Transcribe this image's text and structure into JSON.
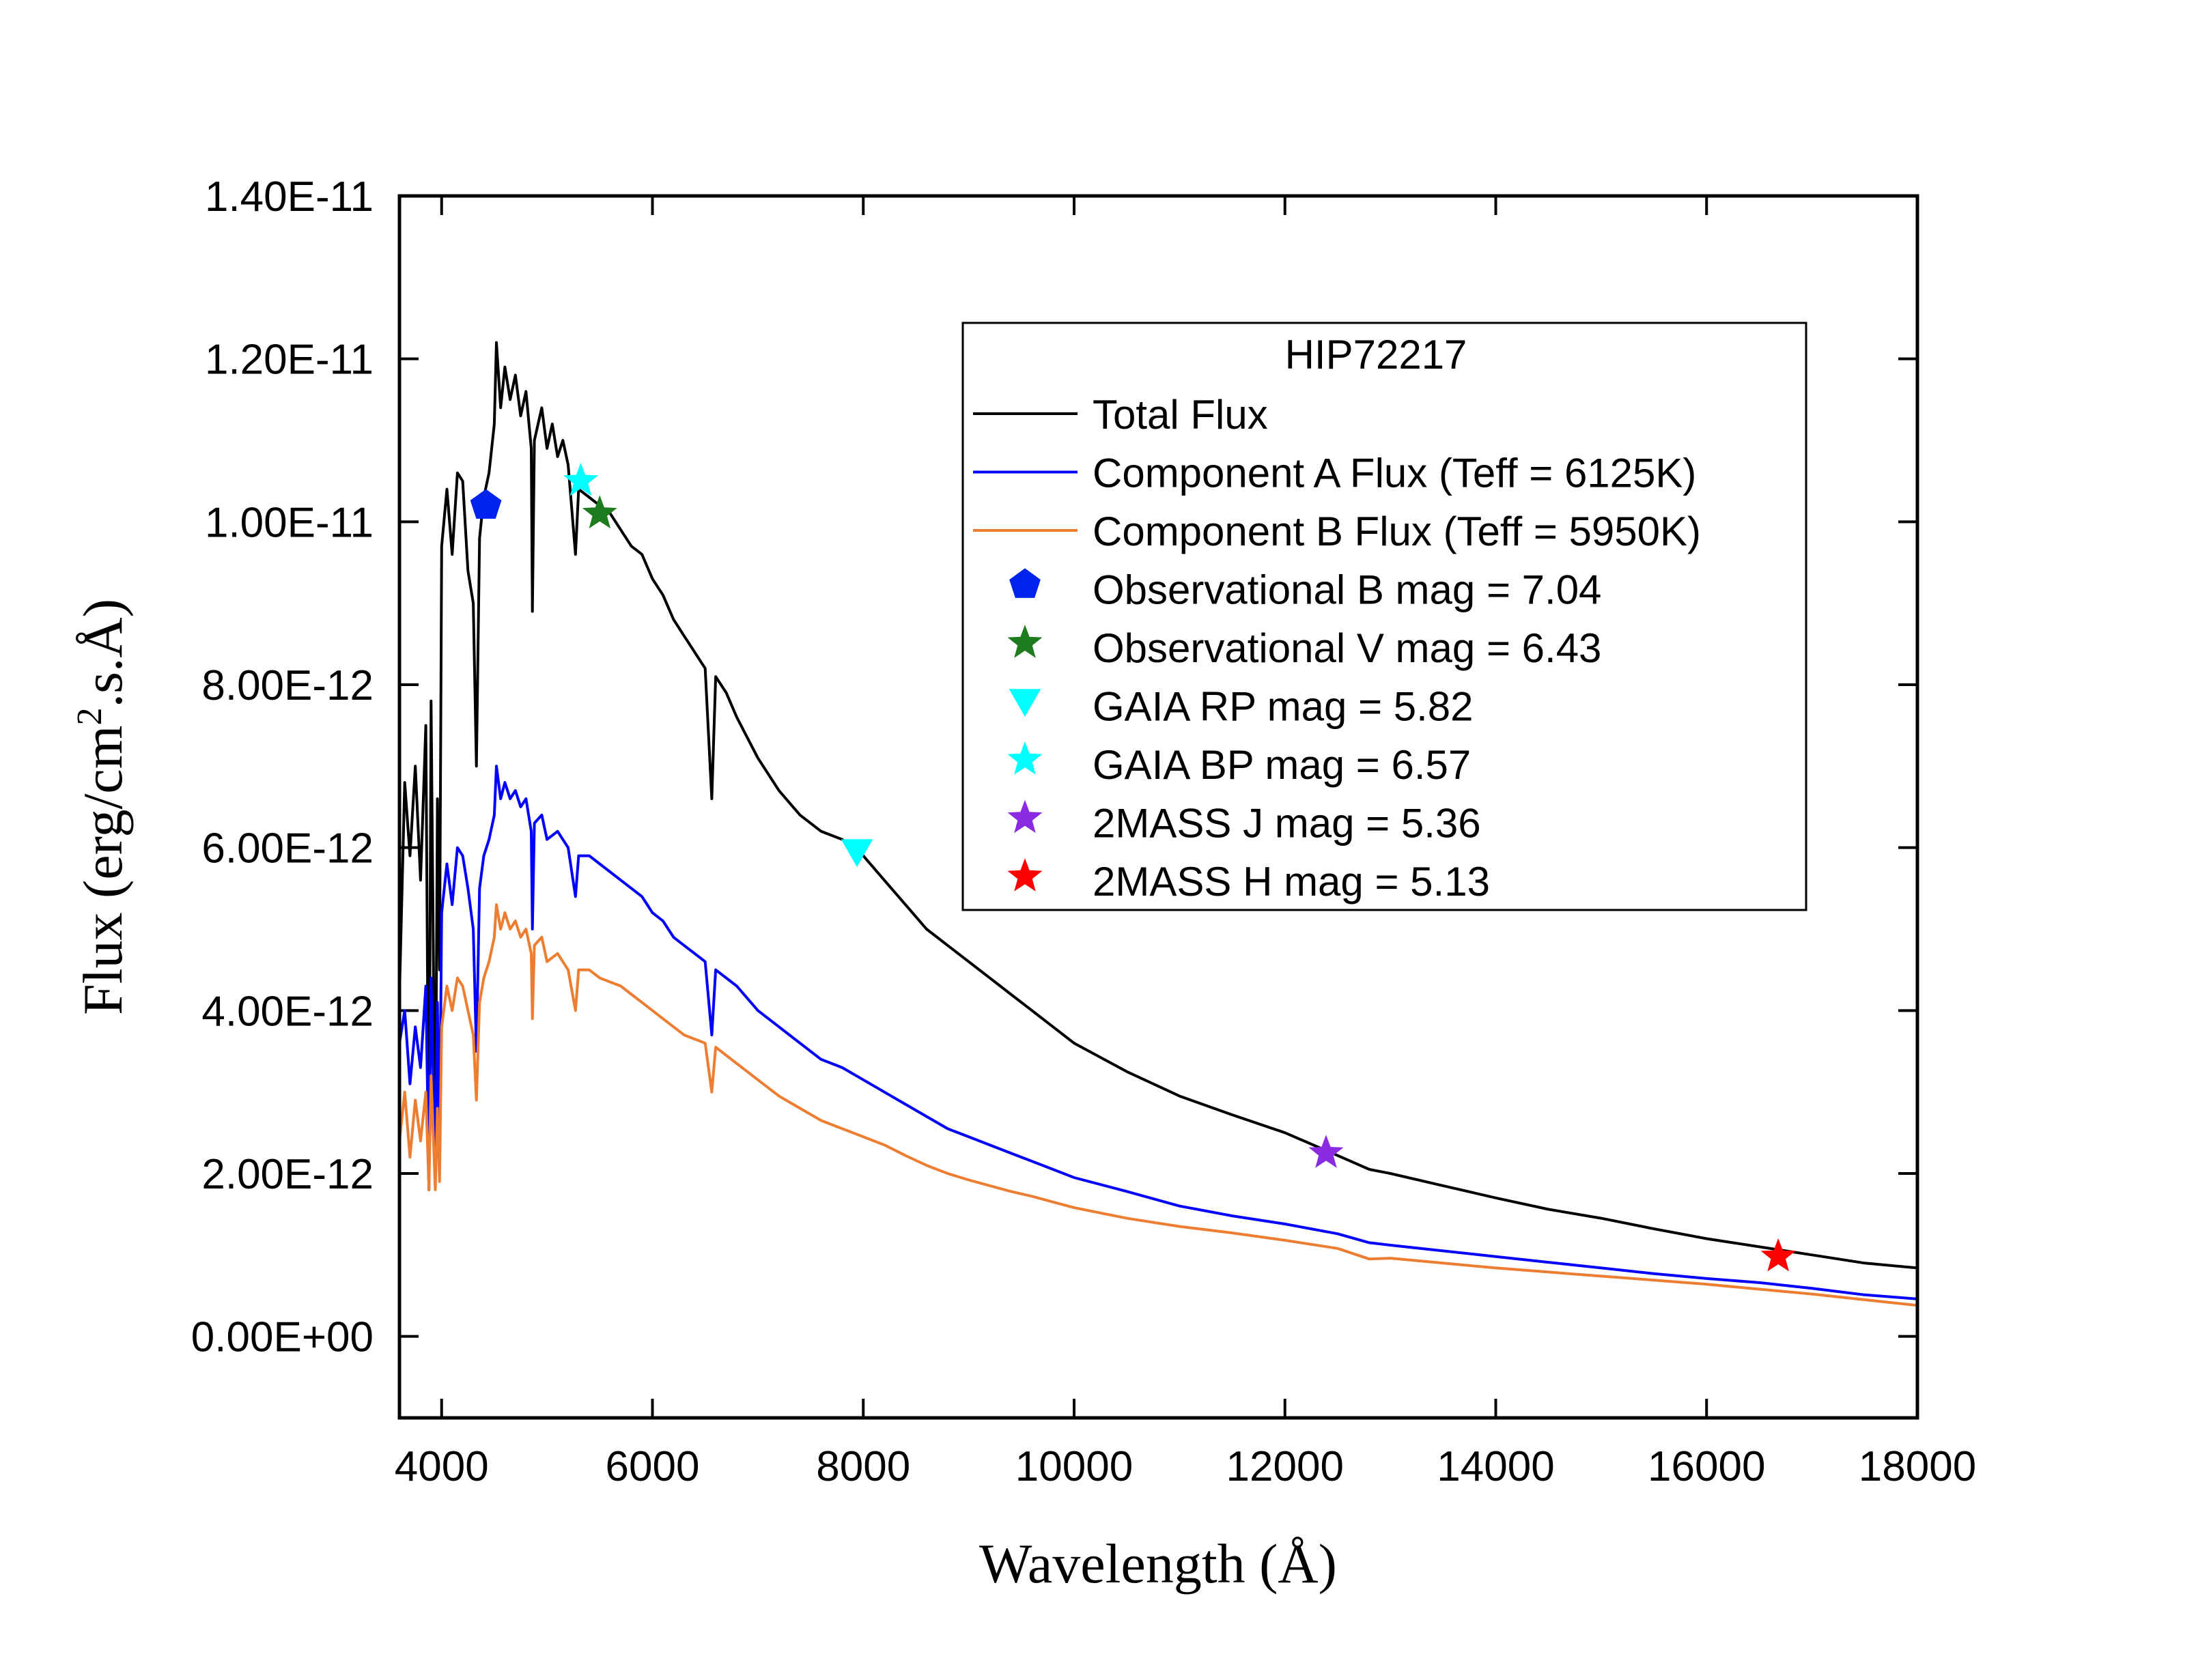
{
  "chart_data": {
    "type": "line",
    "legend_title": "HIP72217",
    "legend_position": "top-right",
    "grid": false,
    "xlabel": "Wavelength (Å)",
    "ylabel": {
      "prefix": "Flux (erg/cm",
      "superscript": "2",
      "suffix": ".s.Å)"
    },
    "xlim": [
      3600,
      18000
    ],
    "ylim": [
      -1e-12,
      1.4e-11
    ],
    "x_ticks": [
      {
        "value": 4000,
        "label": "4000"
      },
      {
        "value": 6000,
        "label": "6000"
      },
      {
        "value": 8000,
        "label": "8000"
      },
      {
        "value": 10000,
        "label": "10000"
      },
      {
        "value": 12000,
        "label": "12000"
      },
      {
        "value": 14000,
        "label": "14000"
      },
      {
        "value": 16000,
        "label": "16000"
      },
      {
        "value": 18000,
        "label": "18000"
      }
    ],
    "y_ticks": [
      {
        "value": 0,
        "label": "0.00E+00"
      },
      {
        "value": 2e-12,
        "label": "2.00E-12"
      },
      {
        "value": 4e-12,
        "label": "4.00E-12"
      },
      {
        "value": 6e-12,
        "label": "6.00E-12"
      },
      {
        "value": 8e-12,
        "label": "8.00E-12"
      },
      {
        "value": 1e-11,
        "label": "1.00E-11"
      },
      {
        "value": 1.2e-11,
        "label": "1.20E-11"
      },
      {
        "value": 1.4e-11,
        "label": "1.40E-11"
      }
    ],
    "series": [
      {
        "name": "Total Flux",
        "color": "#000000",
        "points": [
          [
            3600,
            4.2e-12
          ],
          [
            3650,
            6.8e-12
          ],
          [
            3700,
            5.9e-12
          ],
          [
            3750,
            7e-12
          ],
          [
            3800,
            5.6e-12
          ],
          [
            3850,
            7.5e-12
          ],
          [
            3880,
            1.8e-12
          ],
          [
            3900,
            7.8e-12
          ],
          [
            3940,
            2e-12
          ],
          [
            3960,
            6.6e-12
          ],
          [
            3980,
            4.5e-12
          ],
          [
            4000,
            9.7e-12
          ],
          [
            4050,
            1.04e-11
          ],
          [
            4100,
            9.6e-12
          ],
          [
            4150,
            1.06e-11
          ],
          [
            4200,
            1.05e-11
          ],
          [
            4250,
            9.4e-12
          ],
          [
            4300,
            9e-12
          ],
          [
            4330,
            7e-12
          ],
          [
            4360,
            9.8e-12
          ],
          [
            4400,
            1.03e-11
          ],
          [
            4450,
            1.06e-11
          ],
          [
            4500,
            1.12e-11
          ],
          [
            4520,
            1.22e-11
          ],
          [
            4560,
            1.14e-11
          ],
          [
            4600,
            1.19e-11
          ],
          [
            4650,
            1.15e-11
          ],
          [
            4700,
            1.18e-11
          ],
          [
            4750,
            1.13e-11
          ],
          [
            4800,
            1.16e-11
          ],
          [
            4850,
            1.09e-11
          ],
          [
            4861,
            8.9e-12
          ],
          [
            4880,
            1.1e-11
          ],
          [
            4950,
            1.14e-11
          ],
          [
            5000,
            1.09e-11
          ],
          [
            5050,
            1.12e-11
          ],
          [
            5100,
            1.08e-11
          ],
          [
            5150,
            1.1e-11
          ],
          [
            5200,
            1.07e-11
          ],
          [
            5270,
            9.6e-12
          ],
          [
            5300,
            1.04e-11
          ],
          [
            5400,
            1.03e-11
          ],
          [
            5500,
            1.02e-11
          ],
          [
            5600,
            1.01e-11
          ],
          [
            5700,
            9.9e-12
          ],
          [
            5800,
            9.7e-12
          ],
          [
            5900,
            9.6e-12
          ],
          [
            6000,
            9.3e-12
          ],
          [
            6100,
            9.1e-12
          ],
          [
            6200,
            8.8e-12
          ],
          [
            6300,
            8.6e-12
          ],
          [
            6400,
            8.4e-12
          ],
          [
            6500,
            8.2e-12
          ],
          [
            6563,
            6.6e-12
          ],
          [
            6600,
            8.1e-12
          ],
          [
            6700,
            7.9e-12
          ],
          [
            6800,
            7.6e-12
          ],
          [
            7000,
            7.1e-12
          ],
          [
            7200,
            6.7e-12
          ],
          [
            7400,
            6.4e-12
          ],
          [
            7600,
            6.2e-12
          ],
          [
            7800,
            6.1e-12
          ],
          [
            8000,
            5.9e-12
          ],
          [
            8200,
            5.6e-12
          ],
          [
            8400,
            5.3e-12
          ],
          [
            8600,
            5e-12
          ],
          [
            8800,
            4.8e-12
          ],
          [
            9000,
            4.6e-12
          ],
          [
            9200,
            4.4e-12
          ],
          [
            9400,
            4.2e-12
          ],
          [
            9600,
            4e-12
          ],
          [
            9800,
            3.8e-12
          ],
          [
            10000,
            3.6e-12
          ],
          [
            10500,
            3.25e-12
          ],
          [
            11000,
            2.95e-12
          ],
          [
            11500,
            2.72e-12
          ],
          [
            12000,
            2.5e-12
          ],
          [
            12500,
            2.22e-12
          ],
          [
            12800,
            2.05e-12
          ],
          [
            13000,
            2e-12
          ],
          [
            13500,
            1.85e-12
          ],
          [
            14000,
            1.7e-12
          ],
          [
            14500,
            1.56e-12
          ],
          [
            15000,
            1.45e-12
          ],
          [
            15500,
            1.32e-12
          ],
          [
            16000,
            1.2e-12
          ],
          [
            16500,
            1.1e-12
          ],
          [
            17000,
            1e-12
          ],
          [
            17500,
            9e-13
          ],
          [
            18000,
            8.4e-13
          ]
        ]
      },
      {
        "name": "Component A Flux (Teff = 6125K)",
        "color": "#0000ff",
        "points": [
          [
            3600,
            3.6e-12
          ],
          [
            3650,
            4e-12
          ],
          [
            3700,
            3.1e-12
          ],
          [
            3750,
            3.8e-12
          ],
          [
            3800,
            3.3e-12
          ],
          [
            3850,
            4.3e-12
          ],
          [
            3880,
            1.9e-12
          ],
          [
            3900,
            4.4e-12
          ],
          [
            3940,
            2e-12
          ],
          [
            3960,
            4.1e-12
          ],
          [
            3980,
            2.3e-12
          ],
          [
            4000,
            5.2e-12
          ],
          [
            4050,
            5.8e-12
          ],
          [
            4100,
            5.3e-12
          ],
          [
            4150,
            6e-12
          ],
          [
            4200,
            5.9e-12
          ],
          [
            4250,
            5.5e-12
          ],
          [
            4300,
            5e-12
          ],
          [
            4330,
            3.5e-12
          ],
          [
            4360,
            5.5e-12
          ],
          [
            4400,
            5.9e-12
          ],
          [
            4450,
            6.1e-12
          ],
          [
            4500,
            6.4e-12
          ],
          [
            4520,
            7e-12
          ],
          [
            4560,
            6.6e-12
          ],
          [
            4600,
            6.8e-12
          ],
          [
            4650,
            6.6e-12
          ],
          [
            4700,
            6.7e-12
          ],
          [
            4750,
            6.5e-12
          ],
          [
            4800,
            6.6e-12
          ],
          [
            4850,
            6.2e-12
          ],
          [
            4861,
            5e-12
          ],
          [
            4880,
            6.3e-12
          ],
          [
            4950,
            6.4e-12
          ],
          [
            5000,
            6.1e-12
          ],
          [
            5100,
            6.2e-12
          ],
          [
            5200,
            6e-12
          ],
          [
            5270,
            5.4e-12
          ],
          [
            5300,
            5.9e-12
          ],
          [
            5400,
            5.9e-12
          ],
          [
            5500,
            5.8e-12
          ],
          [
            5600,
            5.7e-12
          ],
          [
            5700,
            5.6e-12
          ],
          [
            5800,
            5.5e-12
          ],
          [
            5900,
            5.4e-12
          ],
          [
            6000,
            5.2e-12
          ],
          [
            6100,
            5.1e-12
          ],
          [
            6200,
            4.9e-12
          ],
          [
            6300,
            4.8e-12
          ],
          [
            6400,
            4.7e-12
          ],
          [
            6500,
            4.6e-12
          ],
          [
            6563,
            3.7e-12
          ],
          [
            6600,
            4.5e-12
          ],
          [
            6800,
            4.3e-12
          ],
          [
            7000,
            4e-12
          ],
          [
            7200,
            3.8e-12
          ],
          [
            7400,
            3.6e-12
          ],
          [
            7600,
            3.4e-12
          ],
          [
            7800,
            3.3e-12
          ],
          [
            8000,
            3.15e-12
          ],
          [
            8200,
            3e-12
          ],
          [
            8400,
            2.85e-12
          ],
          [
            8600,
            2.7e-12
          ],
          [
            8800,
            2.55e-12
          ],
          [
            9000,
            2.45e-12
          ],
          [
            9200,
            2.35e-12
          ],
          [
            9400,
            2.25e-12
          ],
          [
            9600,
            2.15e-12
          ],
          [
            9800,
            2.05e-12
          ],
          [
            10000,
            1.95e-12
          ],
          [
            10500,
            1.78e-12
          ],
          [
            11000,
            1.6e-12
          ],
          [
            11500,
            1.48e-12
          ],
          [
            12000,
            1.38e-12
          ],
          [
            12500,
            1.26e-12
          ],
          [
            12800,
            1.15e-12
          ],
          [
            13000,
            1.12e-12
          ],
          [
            13500,
            1.05e-12
          ],
          [
            14000,
            9.8e-13
          ],
          [
            14500,
            9.1e-13
          ],
          [
            15000,
            8.4e-13
          ],
          [
            15500,
            7.7e-13
          ],
          [
            16000,
            7.1e-13
          ],
          [
            16500,
            6.6e-13
          ],
          [
            17000,
            5.9e-13
          ],
          [
            17500,
            5.1e-13
          ],
          [
            18000,
            4.6e-13
          ]
        ]
      },
      {
        "name": "Component B Flux (Teff = 5950K)",
        "color": "#ed7d31",
        "points": [
          [
            3600,
            2.4e-12
          ],
          [
            3650,
            3e-12
          ],
          [
            3700,
            2.2e-12
          ],
          [
            3750,
            2.9e-12
          ],
          [
            3800,
            2.4e-12
          ],
          [
            3850,
            3e-12
          ],
          [
            3880,
            1.8e-12
          ],
          [
            3900,
            3.2e-12
          ],
          [
            3940,
            1.8e-12
          ],
          [
            3960,
            2.8e-12
          ],
          [
            3980,
            1.9e-12
          ],
          [
            4000,
            3.8e-12
          ],
          [
            4050,
            4.3e-12
          ],
          [
            4100,
            4e-12
          ],
          [
            4150,
            4.4e-12
          ],
          [
            4200,
            4.3e-12
          ],
          [
            4250,
            4e-12
          ],
          [
            4300,
            3.7e-12
          ],
          [
            4330,
            2.9e-12
          ],
          [
            4360,
            4.1e-12
          ],
          [
            4400,
            4.4e-12
          ],
          [
            4450,
            4.6e-12
          ],
          [
            4500,
            4.9e-12
          ],
          [
            4520,
            5.3e-12
          ],
          [
            4560,
            5e-12
          ],
          [
            4600,
            5.2e-12
          ],
          [
            4650,
            5e-12
          ],
          [
            4700,
            5.1e-12
          ],
          [
            4750,
            4.9e-12
          ],
          [
            4800,
            5e-12
          ],
          [
            4850,
            4.7e-12
          ],
          [
            4861,
            3.9e-12
          ],
          [
            4880,
            4.8e-12
          ],
          [
            4950,
            4.9e-12
          ],
          [
            5000,
            4.6e-12
          ],
          [
            5100,
            4.7e-12
          ],
          [
            5200,
            4.5e-12
          ],
          [
            5270,
            4e-12
          ],
          [
            5300,
            4.5e-12
          ],
          [
            5400,
            4.5e-12
          ],
          [
            5500,
            4.4e-12
          ],
          [
            5600,
            4.35e-12
          ],
          [
            5700,
            4.3e-12
          ],
          [
            5800,
            4.2e-12
          ],
          [
            5900,
            4.1e-12
          ],
          [
            6000,
            4e-12
          ],
          [
            6100,
            3.9e-12
          ],
          [
            6200,
            3.8e-12
          ],
          [
            6300,
            3.7e-12
          ],
          [
            6400,
            3.65e-12
          ],
          [
            6500,
            3.6e-12
          ],
          [
            6563,
            3e-12
          ],
          [
            6600,
            3.55e-12
          ],
          [
            6800,
            3.35e-12
          ],
          [
            7000,
            3.15e-12
          ],
          [
            7200,
            2.95e-12
          ],
          [
            7400,
            2.8e-12
          ],
          [
            7600,
            2.65e-12
          ],
          [
            7800,
            2.55e-12
          ],
          [
            8000,
            2.45e-12
          ],
          [
            8200,
            2.35e-12
          ],
          [
            8400,
            2.22e-12
          ],
          [
            8600,
            2.1e-12
          ],
          [
            8800,
            2e-12
          ],
          [
            9000,
            1.92e-12
          ],
          [
            9200,
            1.85e-12
          ],
          [
            9400,
            1.78e-12
          ],
          [
            9600,
            1.72e-12
          ],
          [
            9800,
            1.65e-12
          ],
          [
            10000,
            1.58e-12
          ],
          [
            10500,
            1.45e-12
          ],
          [
            11000,
            1.35e-12
          ],
          [
            11500,
            1.27e-12
          ],
          [
            12000,
            1.18e-12
          ],
          [
            12500,
            1.08e-12
          ],
          [
            12800,
            9.5e-13
          ],
          [
            13000,
            9.6e-13
          ],
          [
            13500,
            9e-13
          ],
          [
            14000,
            8.4e-13
          ],
          [
            14500,
            7.9e-13
          ],
          [
            15000,
            7.4e-13
          ],
          [
            15500,
            6.9e-13
          ],
          [
            16000,
            6.4e-13
          ],
          [
            16500,
            5.8e-13
          ],
          [
            17000,
            5.2e-13
          ],
          [
            17500,
            4.5e-13
          ],
          [
            18000,
            3.8e-13
          ]
        ]
      }
    ],
    "markers": [
      {
        "name": "Observational B mag = 7.04",
        "shape": "pentagon",
        "color": "#0022ee",
        "x": 4420,
        "y": 1.02e-11
      },
      {
        "name": "Observational V mag = 6.43",
        "shape": "star",
        "color": "#1e7b1e",
        "x": 5500,
        "y": 1.01e-11
      },
      {
        "name": "GAIA RP mag = 5.82",
        "shape": "triangle-down",
        "color": "#00ffff",
        "x": 7940,
        "y": 5.95e-12
      },
      {
        "name": "GAIA BP mag = 6.57",
        "shape": "star",
        "color": "#00ffff",
        "x": 5320,
        "y": 1.05e-11
      },
      {
        "name": "2MASS J mag = 5.36",
        "shape": "star",
        "color": "#8a2be2",
        "x": 12390,
        "y": 2.25e-12
      },
      {
        "name": "2MASS H mag = 5.13",
        "shape": "star",
        "color": "#ff0000",
        "x": 16680,
        "y": 9.8e-13
      }
    ]
  }
}
